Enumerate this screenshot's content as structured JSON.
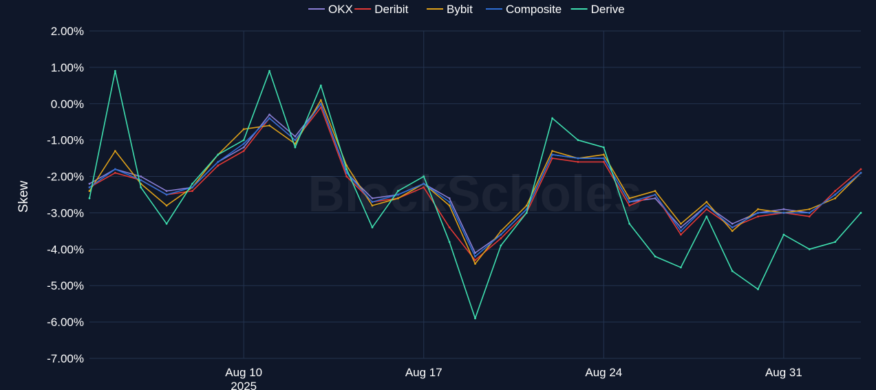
{
  "chart_data": {
    "type": "line",
    "ylabel": "Skew",
    "xlabel": "",
    "y_unit": "%",
    "ylim": [
      -7,
      2
    ],
    "y_ticks": [
      {
        "value": 2,
        "label": "2.00%"
      },
      {
        "value": 1,
        "label": "1.00%"
      },
      {
        "value": 0,
        "label": "0.00%"
      },
      {
        "value": -1,
        "label": "-1.00%"
      },
      {
        "value": -2,
        "label": "-2.00%"
      },
      {
        "value": -3,
        "label": "-3.00%"
      },
      {
        "value": -4,
        "label": "-4.00%"
      },
      {
        "value": -5,
        "label": "-5.00%"
      },
      {
        "value": -6,
        "label": "-6.00%"
      },
      {
        "value": -7,
        "label": "-7.00%"
      }
    ],
    "xlim": [
      "2025-08-04",
      "2025-09-03"
    ],
    "x_ticks": [
      {
        "value": "2025-08-10",
        "label": "Aug 10",
        "sublabel": "2025"
      },
      {
        "value": "2025-08-17",
        "label": "Aug 17"
      },
      {
        "value": "2025-08-24",
        "label": "Aug 24"
      },
      {
        "value": "2025-08-31",
        "label": "Aug 31"
      }
    ],
    "grid": true,
    "legend_position": "top-center",
    "watermark": "BlockScholes",
    "x": [
      "2025-08-04",
      "2025-08-05",
      "2025-08-06",
      "2025-08-07",
      "2025-08-08",
      "2025-08-09",
      "2025-08-10",
      "2025-08-11",
      "2025-08-12",
      "2025-08-13",
      "2025-08-14",
      "2025-08-15",
      "2025-08-16",
      "2025-08-17",
      "2025-08-18",
      "2025-08-19",
      "2025-08-20",
      "2025-08-21",
      "2025-08-22",
      "2025-08-23",
      "2025-08-24",
      "2025-08-25",
      "2025-08-26",
      "2025-08-27",
      "2025-08-28",
      "2025-08-29",
      "2025-08-30",
      "2025-08-31",
      "2025-09-01",
      "2025-09-02",
      "2025-09-03"
    ],
    "series": [
      {
        "name": "OKX",
        "color": "#8b7fd6",
        "values": [
          -2.2,
          -1.8,
          -2.0,
          -2.4,
          -2.3,
          -1.6,
          -1.2,
          -0.3,
          -0.9,
          0.0,
          -1.9,
          -2.6,
          -2.5,
          -2.2,
          -2.6,
          -4.1,
          -3.6,
          -2.9,
          -1.4,
          -1.5,
          -1.5,
          -2.7,
          -2.6,
          -3.4,
          -2.8,
          -3.3,
          -3.0,
          -2.9,
          -3.0,
          -2.5,
          -1.9
        ]
      },
      {
        "name": "Deribit",
        "color": "#e53935",
        "values": [
          -2.3,
          -1.9,
          -2.1,
          -2.5,
          -2.4,
          -1.7,
          -1.3,
          -0.4,
          -1.0,
          -0.1,
          -2.0,
          -2.7,
          -2.6,
          -2.3,
          -3.4,
          -4.3,
          -3.7,
          -3.0,
          -1.5,
          -1.6,
          -1.6,
          -2.8,
          -2.5,
          -3.6,
          -2.9,
          -3.4,
          -3.1,
          -3.0,
          -3.1,
          -2.4,
          -1.8
        ]
      },
      {
        "name": "Bybit",
        "color": "#e0a21a",
        "values": [
          -2.4,
          -1.3,
          -2.2,
          -2.8,
          -2.3,
          -1.4,
          -0.7,
          -0.6,
          -1.1,
          0.1,
          -1.7,
          -2.8,
          -2.6,
          -2.2,
          -2.8,
          -4.4,
          -3.5,
          -2.8,
          -1.3,
          -1.5,
          -1.4,
          -2.6,
          -2.4,
          -3.3,
          -2.7,
          -3.5,
          -2.9,
          -3.0,
          -2.9,
          -2.6,
          -1.9
        ]
      },
      {
        "name": "Composite",
        "color": "#2f6fd6",
        "values": [
          -2.3,
          -1.8,
          -2.1,
          -2.5,
          -2.3,
          -1.6,
          -1.1,
          -0.4,
          -1.0,
          0.0,
          -1.9,
          -2.7,
          -2.5,
          -2.2,
          -2.7,
          -4.2,
          -3.6,
          -2.9,
          -1.4,
          -1.5,
          -1.5,
          -2.7,
          -2.5,
          -3.5,
          -2.8,
          -3.4,
          -3.0,
          -3.0,
          -3.0,
          -2.5,
          -1.9
        ]
      },
      {
        "name": "Derive",
        "color": "#3fe0b0",
        "values": [
          -2.6,
          0.9,
          -2.3,
          -3.3,
          -2.2,
          -1.4,
          -1.0,
          0.9,
          -1.2,
          0.5,
          -1.8,
          -3.4,
          -2.4,
          -2.0,
          -3.8,
          -5.9,
          -3.9,
          -3.0,
          -0.4,
          -1.0,
          -1.2,
          -3.3,
          -4.2,
          -4.5,
          -3.1,
          -4.6,
          -5.1,
          -3.6,
          -4.0,
          -3.8,
          -3.0
        ]
      }
    ]
  }
}
